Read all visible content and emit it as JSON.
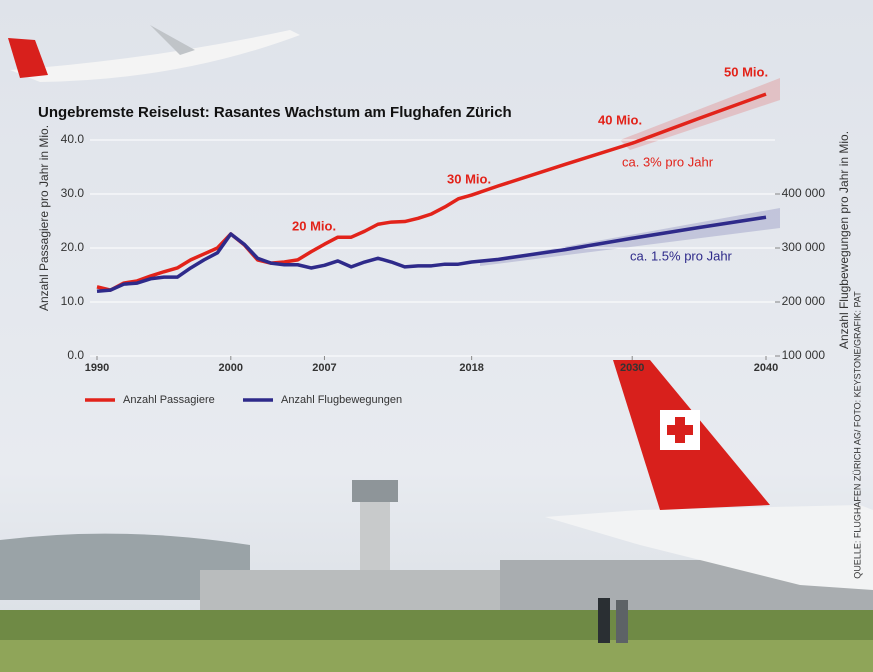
{
  "chart_data": {
    "type": "line",
    "title": "Ungebremste Reiselust: Rasantes Wachstum am Flughafen Zürich",
    "ylabel": "Anzahl Passagiere pro Jahr in Mio.",
    "y2label": "Anzahl Flugbewegungen pro Jahr in Mio.",
    "source": "QUELLE: FLUGHAFEN ZÜRICH AG/ FOTO: KEYSTONE/GRAFIK: PAT",
    "x": [
      1990,
      1991,
      1992,
      1993,
      1994,
      1995,
      1996,
      1997,
      1998,
      1999,
      2000,
      2001,
      2002,
      2003,
      2004,
      2005,
      2006,
      2007,
      2008,
      2009,
      2010,
      2011,
      2012,
      2013,
      2014,
      2015,
      2016,
      2017,
      2018,
      2020,
      2025,
      2030,
      2035,
      2040
    ],
    "xlim": [
      1990,
      2040
    ],
    "xticks": [
      1990,
      2000,
      2007,
      2018,
      2030,
      2040
    ],
    "ylim": [
      0,
      40
    ],
    "yticks": [
      {
        "value": 0,
        "label": "0.0"
      },
      {
        "value": 10,
        "label": "10.0"
      },
      {
        "value": 20,
        "label": "20.0"
      },
      {
        "value": 30,
        "label": "30.0"
      },
      {
        "value": 40,
        "label": "40.0"
      }
    ],
    "y2lim": [
      100000,
      500000
    ],
    "y2ticks": [
      {
        "value": 100000,
        "label": "100 000"
      },
      {
        "value": 200000,
        "label": "200 000"
      },
      {
        "value": 300000,
        "label": "300 000"
      },
      {
        "value": 400000,
        "label": "400 000"
      }
    ],
    "grid": true,
    "legend": "bottom-left",
    "series": [
      {
        "name": "Anzahl Passagiere",
        "color": "#e2231a",
        "values": [
          12.8,
          12.2,
          13.5,
          13.9,
          14.8,
          15.6,
          16.3,
          17.8,
          18.9,
          20.0,
          22.6,
          20.6,
          17.8,
          17.2,
          17.4,
          17.8,
          19.3,
          20.7,
          22.0,
          22.0,
          23.1,
          24.4,
          24.8,
          24.9,
          25.5,
          26.3,
          27.6,
          29.1,
          29.8,
          31.5,
          35.5,
          39.4,
          44.0,
          48.5
        ]
      },
      {
        "name": "Anzahl Flugbewegungen",
        "color": "#2e2a8a",
        "axis": "y2",
        "values": [
          220000,
          222000,
          233000,
          235000,
          243000,
          246000,
          246000,
          263000,
          278000,
          291000,
          326000,
          307000,
          281000,
          272000,
          269000,
          269000,
          263000,
          268000,
          276000,
          265000,
          274000,
          281000,
          274000,
          265000,
          267000,
          267000,
          270000,
          270000,
          274000,
          279000,
          297000,
          318000,
          338000,
          357000
        ]
      }
    ],
    "annotations": [
      "20 Mio.",
      "30 Mio.",
      "40 Mio.",
      "50 Mio.",
      "ca. 3% pro Jahr",
      "ca. 1.5% pro Jahr"
    ]
  }
}
